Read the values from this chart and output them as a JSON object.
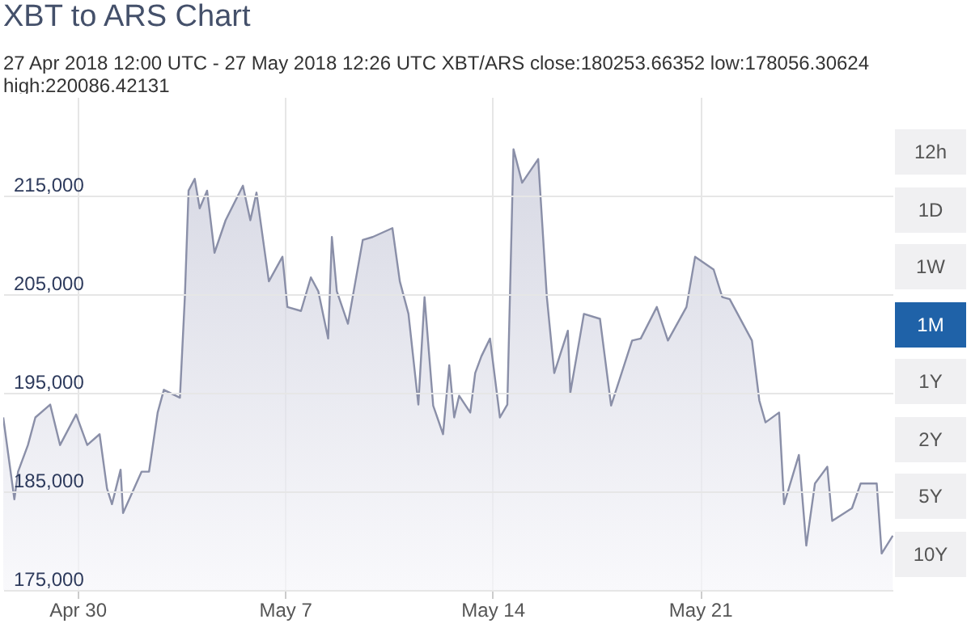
{
  "chart_data": {
    "type": "area",
    "title": "XBT to ARS Chart",
    "subtitle": "27 Apr 2018 12:00 UTC - 27 May 2018 12:26 UTC   XBT/ARS close:180253.66352 low:178056.30624 high:220086.42131",
    "annotations": [
      "12h",
      "1D",
      "1W",
      "1M",
      "1Y",
      "2Y",
      "5Y",
      "10Y"
    ],
    "x": [
      "2018-04-27T12:00",
      "2018-04-27T21:00",
      "2018-04-28T00:00",
      "2018-04-28T08:00",
      "2018-04-28T14:00",
      "2018-04-29T02:00",
      "2018-04-29T10:00",
      "2018-04-29T23:00",
      "2018-04-30T08:00",
      "2018-04-30T18:00",
      "2018-05-01T00:00",
      "2018-05-01T04:00",
      "2018-05-01T11:00",
      "2018-05-01T13:00",
      "2018-05-02T04:00",
      "2018-05-02T10:00",
      "2018-05-02T17:00",
      "2018-05-02T22:00",
      "2018-05-03T11:00",
      "2018-05-03T15:00",
      "2018-05-03T18:00",
      "2018-05-03T23:00",
      "2018-05-04T03:00",
      "2018-05-04T09:00",
      "2018-05-04T15:00",
      "2018-05-05T00:00",
      "2018-05-05T14:00",
      "2018-05-05T20:00",
      "2018-05-06T01:00",
      "2018-05-06T11:00",
      "2018-05-06T22:00",
      "2018-05-07T02:00",
      "2018-05-07T13:00",
      "2018-05-07T21:00",
      "2018-05-08T03:00",
      "2018-05-08T11:00",
      "2018-05-08T14:00",
      "2018-05-08T18:00",
      "2018-05-09T03:00",
      "2018-05-09T15:00",
      "2018-05-09T23:00",
      "2018-05-10T15:00",
      "2018-05-10T21:00",
      "2018-05-11T04:00",
      "2018-05-11T12:00",
      "2018-05-11T17:00",
      "2018-05-12T00:00",
      "2018-05-12T08:00",
      "2018-05-12T13:00",
      "2018-05-12T17:00",
      "2018-05-12T21:00",
      "2018-05-13T06:00",
      "2018-05-13T10:00",
      "2018-05-13T15:00",
      "2018-05-13T22:00",
      "2018-05-14T06:00",
      "2018-05-14T12:00",
      "2018-05-14T17:00",
      "2018-05-15T00:00",
      "2018-05-15T13:00",
      "2018-05-15T20:00",
      "2018-05-16T02:00",
      "2018-05-16T13:00",
      "2018-05-16T15:00",
      "2018-05-17T02:00",
      "2018-05-17T15:00",
      "2018-05-18T00:00",
      "2018-05-18T17:00",
      "2018-05-19T00:00",
      "2018-05-19T13:00",
      "2018-05-19T22:00",
      "2018-05-20T13:00",
      "2018-05-20T20:00",
      "2018-05-21T11:00",
      "2018-05-21T18:00",
      "2018-05-22T00:00",
      "2018-05-22T18:00",
      "2018-05-23T00:00",
      "2018-05-23T05:00",
      "2018-05-23T16:00",
      "2018-05-23T20:00",
      "2018-05-24T08:00",
      "2018-05-24T14:00",
      "2018-05-24T21:00",
      "2018-05-25T07:00",
      "2018-05-25T11:00",
      "2018-05-26T03:00",
      "2018-05-26T10:00",
      "2018-05-26T23:00",
      "2018-05-27T03:00",
      "2018-05-27T12:00"
    ],
    "series": [
      {
        "color": "#8a8fa8",
        "values": [
          192500,
          184200,
          187000,
          189700,
          192500,
          193800,
          189700,
          192800,
          189700,
          190800,
          185300,
          183700,
          187200,
          182800,
          187000,
          187000,
          193000,
          195300,
          194500,
          204700,
          215500,
          216700,
          213700,
          215500,
          209200,
          212500,
          216000,
          212500,
          215300,
          206300,
          208800,
          203700,
          203300,
          206700,
          205300,
          200500,
          210800,
          205300,
          202000,
          210500,
          210800,
          211700,
          206300,
          203000,
          193800,
          204700,
          193700,
          190800,
          197800,
          192500,
          194700,
          193000,
          197000,
          198700,
          200500,
          192500,
          193800,
          219700,
          216300,
          218700,
          204700,
          197000,
          201300,
          195000,
          203000,
          202500,
          193700,
          200300,
          200500,
          203700,
          200300,
          203700,
          208800,
          207500,
          204700,
          204500,
          200300,
          194200,
          192000,
          193000,
          183700,
          188700,
          179500,
          185800,
          187500,
          182000,
          183300,
          185800,
          185800,
          178700,
          180500
        ]
      }
    ],
    "xlim": [
      "2018-04-27T12:00",
      "2018-05-27T12:26"
    ],
    "xticks": [
      {
        "value": "2018-04-30",
        "label": "Apr 30"
      },
      {
        "value": "2018-05-07",
        "label": "May 7"
      },
      {
        "value": "2018-05-14",
        "label": "May 14"
      },
      {
        "value": "2018-05-21",
        "label": "May 21"
      }
    ],
    "ylim": [
      175000,
      225000
    ],
    "yticks": [
      {
        "value": 175000,
        "label": "175,000"
      },
      {
        "value": 185000,
        "label": "185,000"
      },
      {
        "value": 195000,
        "label": "195,000"
      },
      {
        "value": 205000,
        "label": "205,000"
      },
      {
        "value": 215000,
        "label": "215,000"
      }
    ],
    "grid": true
  }
}
